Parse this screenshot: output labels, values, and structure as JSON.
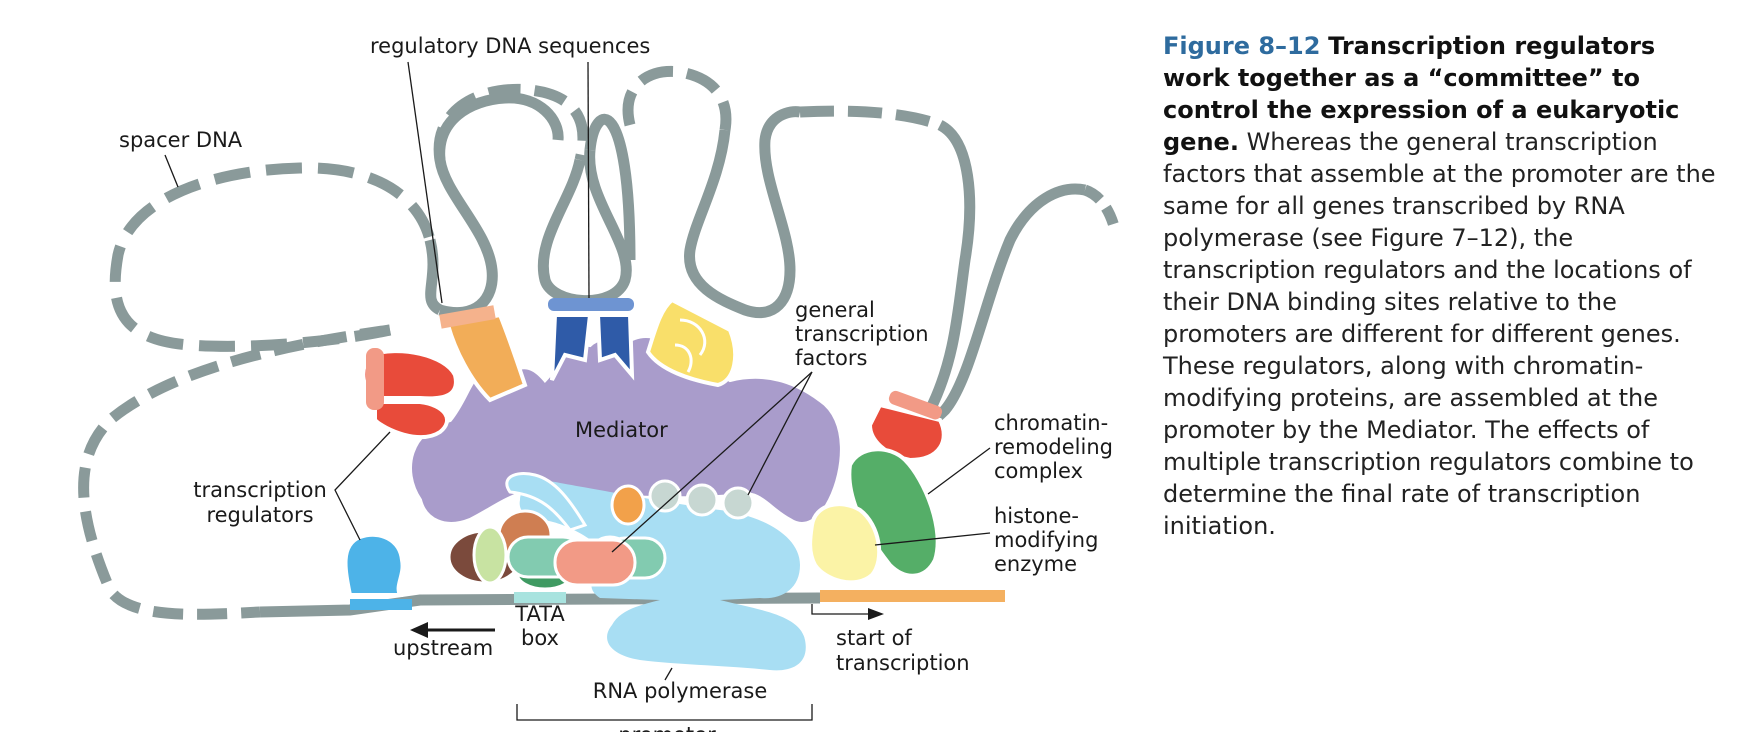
{
  "labels": {
    "regulatory_dna": "regulatory DNA sequences",
    "spacer_dna": "spacer DNA",
    "general_tf": [
      "general",
      "transcription",
      "factors"
    ],
    "mediator": "Mediator",
    "transcription_regulators": [
      "transcription",
      "regulators"
    ],
    "chromatin_remodeling": [
      "chromatin-",
      "remodeling",
      "complex"
    ],
    "histone_modifying": [
      "histone-",
      "modifying",
      "enzyme"
    ],
    "tata_box": [
      "TATA",
      "box"
    ],
    "upstream": "upstream",
    "start_of_transcription": [
      "start of",
      "transcription"
    ],
    "rna_polymerase": "RNA polymerase",
    "promoter": "promoter"
  },
  "caption": {
    "figure_number": "Figure 8–12",
    "title": "Transcription regulators work together as a “committee” to control the expression of a eukaryotic gene.",
    "body": "Whereas the general transcription factors that assemble at the promoter are the same for all genes transcribed by RNA polymerase (see Figure 7–12), the transcription regulators and the locations of their DNA binding sites relative to the promoters are different for different genes. These regulators, along with chromatin-modifying proteins, are assembled at the promoter by the Mediator. The effects of multiple transcription regulators combine to determine the final rate of transcription initiation."
  },
  "colors": {
    "dna": "#8a9a9a",
    "mediator": "#a99ccb",
    "regulator_red": "#e84b3a",
    "regulator_orange": "#f2ad58",
    "regulator_blue": "#2f5ba8",
    "regulator_yellow": "#f9df6a",
    "rna_polymerase": "#a8def3",
    "chromatin_remodeling": "#55ae68",
    "histone_modifying": "#fbf3a6",
    "coding_region": "#f4b060",
    "caption_accent": "#2e6b9e"
  }
}
